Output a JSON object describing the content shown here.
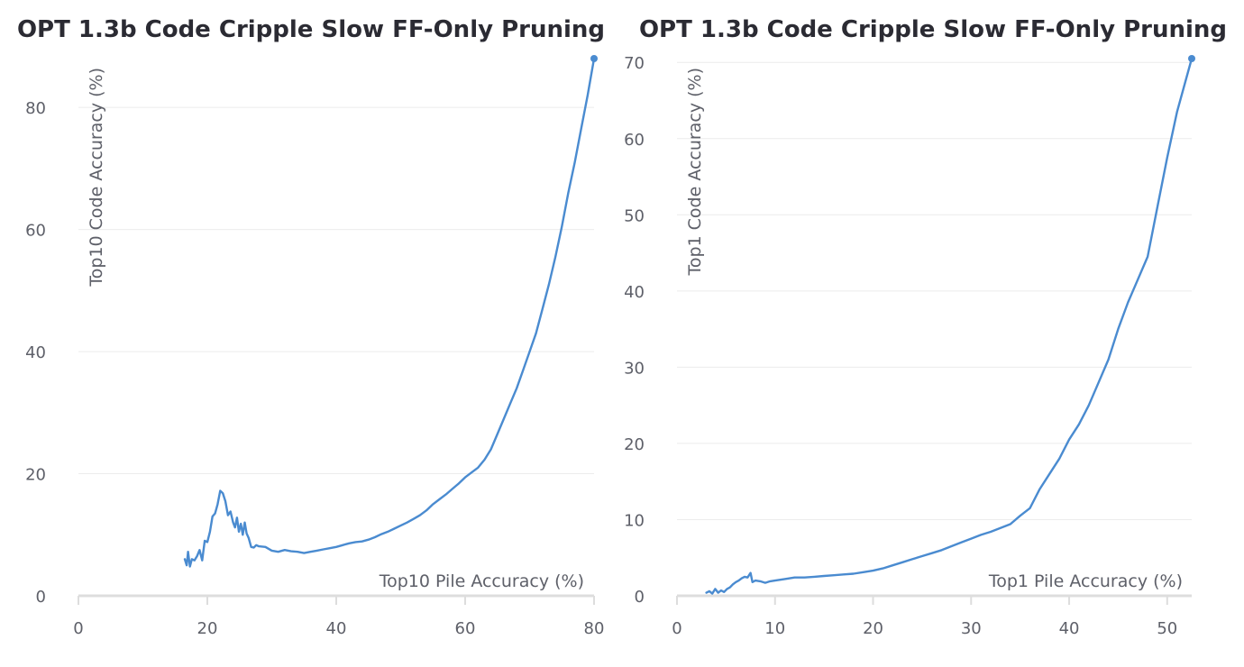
{
  "chart_data": [
    {
      "type": "line",
      "title": "OPT 1.3b Code Cripple Slow FF-Only Pruning",
      "xlabel": "Top10 Pile Accuracy (%)",
      "ylabel": "Top10 Code Accuracy (%)",
      "xlim": [
        0,
        80
      ],
      "ylim": [
        0,
        88
      ],
      "x_ticks": [
        0,
        20,
        40,
        60,
        80
      ],
      "y_ticks": [
        0,
        20,
        40,
        60,
        80
      ],
      "grid": true,
      "line_color": "#4a8bd0",
      "series": [
        {
          "x": [
            16.5,
            16.8,
            17.0,
            17.3,
            17.6,
            18.0,
            18.4,
            18.8,
            19.2,
            19.6,
            20.0,
            20.4,
            20.8,
            21.2,
            21.6,
            22.0,
            22.4,
            22.8,
            23.2,
            23.6,
            24.0,
            24.3,
            24.6,
            24.9,
            25.2,
            25.5,
            25.8,
            26.1,
            26.4,
            26.8,
            27.2,
            27.6,
            28.0,
            29.0,
            30.0,
            31.0,
            32.0,
            33.0,
            34.0,
            35.0,
            36.0,
            37.0,
            38.0,
            39.0,
            40.0,
            41.0,
            42.0,
            43.0,
            44.0,
            45.0,
            46.0,
            47.0,
            48.0,
            49.0,
            50.0,
            51.0,
            52.0,
            53.0,
            54.0,
            55.0,
            56.0,
            57.0,
            58.0,
            59.0,
            60.0,
            61.0,
            62.0,
            63.0,
            64.0,
            65.0,
            66.0,
            67.0,
            68.0,
            69.0,
            70.0,
            71.0,
            72.0,
            73.0,
            74.0,
            75.0,
            76.0,
            77.0,
            78.0,
            79.0,
            80.0
          ],
          "y": [
            6.0,
            5.0,
            7.2,
            4.8,
            6.0,
            5.8,
            6.5,
            7.5,
            5.8,
            9.0,
            8.8,
            10.5,
            13.0,
            13.5,
            15.0,
            17.2,
            16.8,
            15.5,
            13.2,
            13.8,
            12.0,
            11.2,
            12.8,
            10.5,
            11.8,
            10.0,
            12.0,
            10.2,
            9.5,
            8.0,
            7.9,
            8.3,
            8.1,
            8.0,
            7.4,
            7.2,
            7.5,
            7.3,
            7.2,
            7.0,
            7.2,
            7.4,
            7.6,
            7.8,
            8.0,
            8.3,
            8.6,
            8.8,
            8.9,
            9.2,
            9.6,
            10.1,
            10.5,
            11.0,
            11.5,
            12.0,
            12.6,
            13.2,
            14.0,
            15.0,
            15.8,
            16.6,
            17.5,
            18.4,
            19.4,
            20.2,
            21.0,
            22.3,
            24.0,
            26.5,
            29.0,
            31.5,
            34.0,
            37.0,
            40.0,
            43.0,
            47.0,
            51.0,
            55.5,
            60.5,
            66.0,
            71.0,
            76.5,
            82.0,
            88.0
          ]
        }
      ]
    },
    {
      "type": "line",
      "title": "OPT 1.3b Code Cripple Slow FF-Only Pruning",
      "xlabel": "Top1 Pile Accuracy (%)",
      "ylabel": "Top1 Code Accuracy (%)",
      "xlim": [
        0,
        52.5
      ],
      "ylim": [
        0,
        70.5
      ],
      "x_ticks": [
        0,
        10,
        20,
        30,
        40,
        50
      ],
      "y_ticks": [
        0,
        10,
        20,
        30,
        40,
        50,
        60,
        70
      ],
      "grid": true,
      "line_color": "#4a8bd0",
      "series": [
        {
          "x": [
            3.0,
            3.3,
            3.6,
            3.9,
            4.2,
            4.5,
            4.8,
            5.1,
            5.4,
            5.7,
            6.0,
            6.3,
            6.6,
            6.9,
            7.2,
            7.5,
            7.7,
            8.0,
            8.5,
            9.0,
            9.5,
            10.0,
            11.0,
            12.0,
            13.0,
            14.0,
            15.0,
            16.0,
            17.0,
            18.0,
            19.0,
            20.0,
            21.0,
            22.0,
            23.0,
            24.0,
            25.0,
            26.0,
            27.0,
            28.0,
            29.0,
            30.0,
            31.0,
            32.0,
            33.0,
            34.0,
            35.0,
            36.0,
            37.0,
            38.0,
            39.0,
            40.0,
            41.0,
            42.0,
            43.0,
            44.0,
            45.0,
            46.0,
            47.0,
            48.0,
            49.0,
            50.0,
            51.0,
            52.5
          ],
          "y": [
            0.4,
            0.6,
            0.3,
            0.9,
            0.4,
            0.7,
            0.5,
            0.9,
            1.1,
            1.5,
            1.8,
            2.0,
            2.3,
            2.5,
            2.4,
            3.0,
            1.8,
            2.0,
            1.9,
            1.7,
            1.9,
            2.0,
            2.2,
            2.4,
            2.4,
            2.5,
            2.6,
            2.7,
            2.8,
            2.9,
            3.1,
            3.3,
            3.6,
            4.0,
            4.4,
            4.8,
            5.2,
            5.6,
            6.0,
            6.5,
            7.0,
            7.5,
            8.0,
            8.4,
            8.9,
            9.4,
            10.5,
            11.5,
            14.0,
            16.0,
            18.0,
            20.5,
            22.5,
            25.0,
            28.0,
            31.0,
            35.0,
            38.5,
            41.5,
            44.5,
            51.0,
            57.5,
            63.5,
            70.5
          ]
        }
      ]
    }
  ]
}
